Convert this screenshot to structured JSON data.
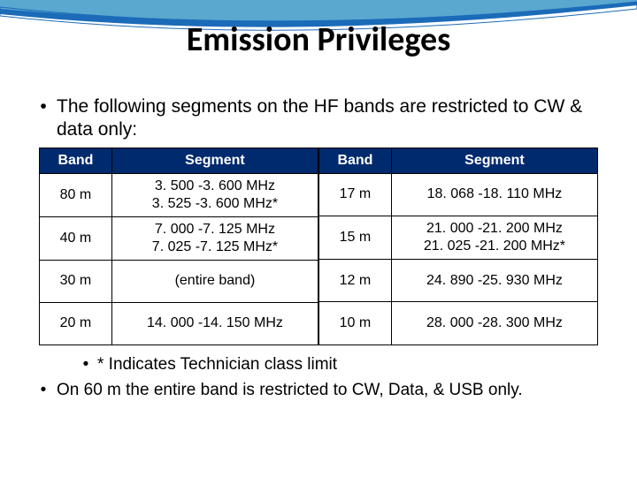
{
  "title": "Emission Privileges",
  "intro_bullet": "The following segments on the HF bands are restricted to CW & data only:",
  "table": {
    "header_band": "Band",
    "header_segment": "Segment",
    "header_bg": "#002a6e",
    "header_fg": "#ffffff",
    "border_color": "#000000",
    "left_rows": [
      {
        "band": "80 m",
        "segment": "3. 500 -3. 600 MHz\n3. 525 -3. 600 MHz*"
      },
      {
        "band": "40 m",
        "segment": "7. 000 -7. 125 MHz\n7. 025 -7. 125 MHz*"
      },
      {
        "band": "30 m",
        "segment": "(entire band)"
      },
      {
        "band": "20 m",
        "segment": "14. 000 -14. 150 MHz"
      }
    ],
    "right_rows": [
      {
        "band": "17 m",
        "segment": "18. 068 -18. 110 MHz"
      },
      {
        "band": "15 m",
        "segment": "21. 000 -21. 200 MHz\n21. 025 -21. 200 MHz*"
      },
      {
        "band": "12 m",
        "segment": "24. 890 -25. 930 MHz"
      },
      {
        "band": "10 m",
        "segment": "28. 000 -28. 300 MHz"
      }
    ]
  },
  "footnote_sub": "* Indicates Technician class limit",
  "footnote_main": "On 60 m the entire band is restricted to CW, Data, & USB only.",
  "swoosh_colors": {
    "outer": "#1b6bb8",
    "inner": "#5aa7cf"
  }
}
